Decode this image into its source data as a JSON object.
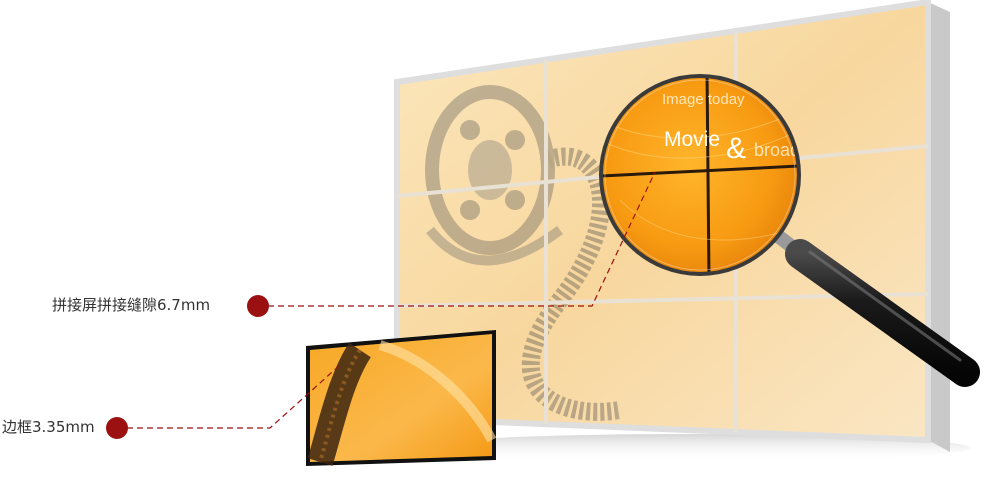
{
  "annotations": [
    {
      "id": "gap",
      "text": "拼接屏拼接缝隙6.7mm"
    },
    {
      "id": "bezel",
      "text": "边框3.35mm"
    }
  ],
  "screen_text": {
    "line1": "Image today",
    "line2_a": "Movie",
    "line2_amp": "&",
    "line2_b": "broadcast"
  },
  "colors": {
    "marker": "#9b1111",
    "leader_line": "#9b1111",
    "wall_frame": "#dcdcdc",
    "panel_orange": "#f7a21b",
    "panel_light": "#f9dfa5"
  },
  "icons": [
    "magnifier-icon",
    "film-reel-icon"
  ]
}
